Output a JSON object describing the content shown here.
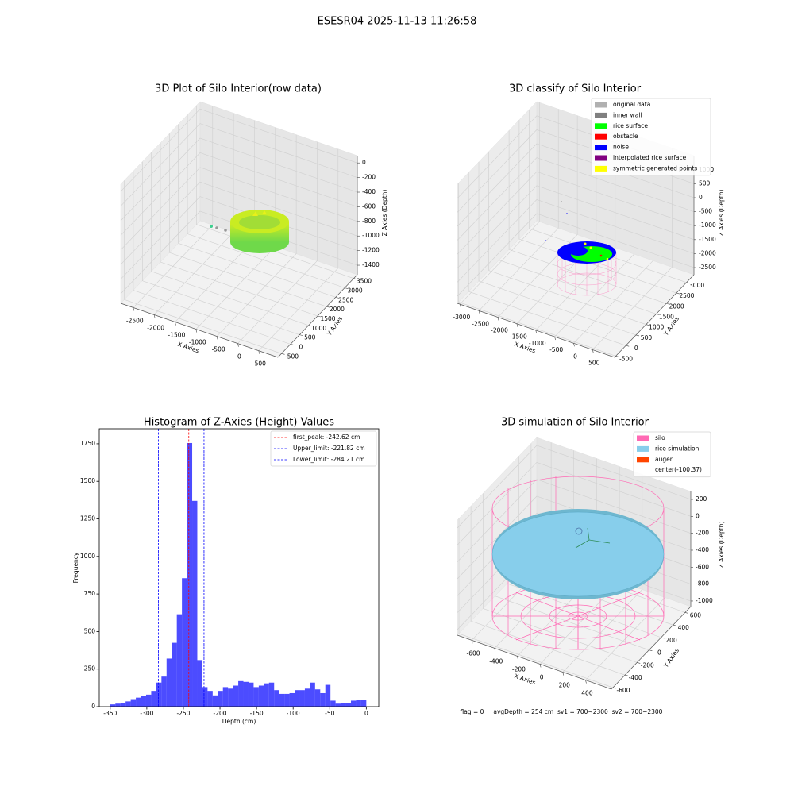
{
  "title": "ESESR04 2025-11-13 11:26:58",
  "chart_data": [
    {
      "type": "scatter3d",
      "title": "3D Plot of Silo Interior(row data)",
      "xlabel": "X Axies",
      "ylabel": "Y Axies",
      "zlabel": "Z Axies (Depth)",
      "xlim": [
        -2800,
        960
      ],
      "ylim": [
        -700,
        3700
      ],
      "zlim": [
        -1530,
        100
      ],
      "xticks": [
        -2500,
        -2000,
        -1500,
        -1000,
        -500,
        0,
        500
      ],
      "yticks": [
        -500,
        0,
        500,
        1000,
        1500,
        2000,
        2500,
        3000,
        3500
      ],
      "zticks": [
        -1400,
        -1200,
        -1000,
        -800,
        -600,
        -400,
        -200,
        0
      ]
    },
    {
      "type": "scatter3d",
      "title": "3D classify of Silo Interior",
      "xlabel": "X Axies",
      "ylabel": "Y Axies",
      "zlabel": "Z Axies (Depth)",
      "xlim": [
        -3070,
        1080
      ],
      "ylim": [
        -560,
        3370
      ],
      "zlim": [
        -2755,
        1505
      ],
      "xticks": [
        -3000,
        -2500,
        -2000,
        -1500,
        -1000,
        -500,
        0,
        500
      ],
      "yticks": [
        -500,
        0,
        500,
        1000,
        1500,
        2000,
        2500,
        3000
      ],
      "zticks": [
        -2500,
        -2000,
        -1500,
        -1000,
        -500,
        0,
        500,
        1000
      ],
      "legend": [
        {
          "name": "original data",
          "color": "#b0b0b0"
        },
        {
          "name": "inner wall",
          "color": "#808080"
        },
        {
          "name": "rice surface",
          "color": "#00ff00"
        },
        {
          "name": "obstacle",
          "color": "#ff0000"
        },
        {
          "name": "noise",
          "color": "#0000ff"
        },
        {
          "name": "interpolated rice surface",
          "color": "#800080"
        },
        {
          "name": "symmetric generated points",
          "color": "#ffff00"
        }
      ]
    },
    {
      "type": "histogram",
      "title": "Histogram of Z-Axies (Height) Values",
      "xlabel": "Depth (cm)",
      "ylabel": "Frequency",
      "color": "#0000ff",
      "bins": [
        -350,
        -343,
        -336,
        -329,
        -322,
        -315,
        -308,
        -301,
        -294,
        -287,
        -280,
        -273,
        -266,
        -259,
        -252,
        -245,
        -238,
        -231,
        -224,
        -217,
        -210,
        -203,
        -196,
        -189,
        -182,
        -175,
        -168,
        -161,
        -154,
        -147,
        -140,
        -133,
        -126,
        -119,
        -112,
        -105,
        -98,
        -91,
        -84,
        -77,
        -70,
        -63,
        -56,
        -49,
        -42,
        -35,
        -28,
        -21,
        -14,
        -7,
        0
      ],
      "values": [
        15,
        20,
        25,
        35,
        50,
        60,
        70,
        80,
        105,
        160,
        200,
        320,
        425,
        615,
        855,
        1755,
        1370,
        310,
        130,
        105,
        75,
        105,
        130,
        120,
        140,
        170,
        165,
        160,
        130,
        140,
        155,
        160,
        110,
        85,
        85,
        90,
        110,
        110,
        120,
        160,
        115,
        90,
        145,
        40,
        20,
        25,
        25,
        40,
        45,
        45
      ],
      "xlim": [
        -365,
        17
      ],
      "ylim": [
        0,
        1850
      ],
      "xticks": [
        -350,
        -300,
        -250,
        -200,
        -150,
        -100,
        -50,
        0
      ],
      "yticks": [
        0,
        250,
        500,
        750,
        1000,
        1250,
        1500,
        1750
      ],
      "vlines": [
        {
          "label": "first_peak: -242.62 cm",
          "value": -242.62,
          "color": "#ff0000"
        },
        {
          "label": "Upper_limit: -221.82 cm",
          "value": -221.82,
          "color": "#0000ff"
        },
        {
          "label": "Lower_limit: -284.21 cm",
          "value": -284.21,
          "color": "#0000ff"
        }
      ]
    },
    {
      "type": "scatter3d",
      "title": "3D simulation of Silo Interior",
      "xlabel": "X Axies",
      "ylabel": "Y Axies",
      "zlabel": "Z Axies (Depth)",
      "xlim": [
        -726,
        627
      ],
      "ylim": [
        -626,
        694
      ],
      "zlim": [
        -1066,
        294
      ],
      "xticks": [
        -600,
        -400,
        -200,
        0,
        200,
        400
      ],
      "yticks": [
        -600,
        -400,
        -200,
        0,
        200,
        400,
        600
      ],
      "zticks": [
        -1000,
        -800,
        -600,
        -400,
        -200,
        0,
        200
      ],
      "legend": [
        {
          "name": "silo",
          "color": "#ff69b4"
        },
        {
          "name": "rice simulation",
          "color": "#87ceeb"
        },
        {
          "name": "auger",
          "color": "#ff4500"
        },
        {
          "name": "center(-100,37)"
        }
      ],
      "annotation": "flag = 0     avgDepth = 254 cm  sv1 = 700~2300  sv2 = 700~2300"
    }
  ]
}
